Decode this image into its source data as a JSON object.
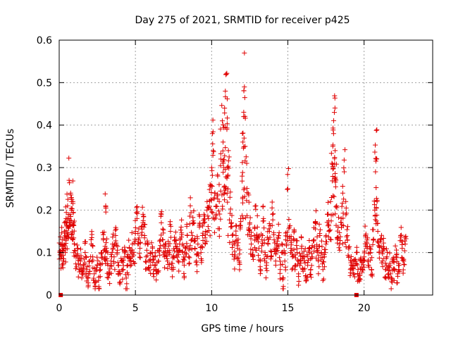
{
  "chart_data": {
    "type": "scatter",
    "title": "Day 275 of 2021, SRMTID for receiver p425",
    "xlabel": "GPS time / hours",
    "ylabel": "SRMTID / TECUs",
    "xlim": [
      0,
      24.5
    ],
    "ylim": [
      0,
      0.6
    ],
    "xticks": [
      0,
      5,
      10,
      15,
      20
    ],
    "yticks": [
      0,
      0.1,
      0.2,
      0.3,
      0.4,
      0.5,
      0.6
    ],
    "xtick_labels": [
      "0",
      "5",
      "10",
      "15",
      "20"
    ],
    "ytick_labels": [
      "0",
      "0.1",
      "0.2",
      "0.3",
      "0.4",
      "0.5",
      "0.6"
    ],
    "grid": true,
    "marker": "+",
    "color": "#e00000",
    "series": [
      {
        "name": "SRMTID",
        "points": [
          [
            0.05,
            0.1
          ],
          [
            0.1,
            0.12
          ],
          [
            0.15,
            0.09
          ],
          [
            0.2,
            0.13
          ],
          [
            0.25,
            0.08
          ],
          [
            0.3,
            0.11
          ],
          [
            0.35,
            0.15
          ],
          [
            0.4,
            0.1
          ],
          [
            0.45,
            0.18
          ],
          [
            0.5,
            0.14
          ],
          [
            0.55,
            0.21
          ],
          [
            0.6,
            0.16
          ],
          [
            0.65,
            0.27
          ],
          [
            0.7,
            0.19
          ],
          [
            0.75,
            0.24
          ],
          [
            0.8,
            0.2
          ],
          [
            0.85,
            0.15
          ],
          [
            0.9,
            0.22
          ],
          [
            0.95,
            0.17
          ],
          [
            1.0,
            0.12
          ],
          [
            1.1,
            0.09
          ],
          [
            1.2,
            0.11
          ],
          [
            1.3,
            0.06
          ],
          [
            1.4,
            0.08
          ],
          [
            1.5,
            0.05
          ],
          [
            1.6,
            0.07
          ],
          [
            1.7,
            0.1
          ],
          [
            1.8,
            0.06
          ],
          [
            1.9,
            0.04
          ],
          [
            2.0,
            0.08
          ],
          [
            2.1,
            0.12
          ],
          [
            2.2,
            0.09
          ],
          [
            2.3,
            0.05
          ],
          [
            2.4,
            0.03
          ],
          [
            2.5,
            0.07
          ],
          [
            2.6,
            0.02
          ],
          [
            2.7,
            0.06
          ],
          [
            2.8,
            0.1
          ],
          [
            2.9,
            0.13
          ],
          [
            3.0,
            0.09
          ],
          [
            3.05,
            0.21
          ],
          [
            3.1,
            0.11
          ],
          [
            3.2,
            0.07
          ],
          [
            3.3,
            0.05
          ],
          [
            3.4,
            0.08
          ],
          [
            3.5,
            0.12
          ],
          [
            3.6,
            0.09
          ],
          [
            3.7,
            0.14
          ],
          [
            3.8,
            0.1
          ],
          [
            3.9,
            0.07
          ],
          [
            4.0,
            0.05
          ],
          [
            4.1,
            0.08
          ],
          [
            4.2,
            0.06
          ],
          [
            4.3,
            0.09
          ],
          [
            4.4,
            0.04
          ],
          [
            4.5,
            0.07
          ],
          [
            4.6,
            0.11
          ],
          [
            4.7,
            0.08
          ],
          [
            4.8,
            0.12
          ],
          [
            4.9,
            0.1
          ],
          [
            5.0,
            0.15
          ],
          [
            5.1,
            0.18
          ],
          [
            5.2,
            0.13
          ],
          [
            5.3,
            0.11
          ],
          [
            5.4,
            0.16
          ],
          [
            5.5,
            0.19
          ],
          [
            5.6,
            0.14
          ],
          [
            5.7,
            0.09
          ],
          [
            5.8,
            0.12
          ],
          [
            5.9,
            0.08
          ],
          [
            6.0,
            0.07
          ],
          [
            6.1,
            0.1
          ],
          [
            6.2,
            0.06
          ],
          [
            6.3,
            0.09
          ],
          [
            6.4,
            0.05
          ],
          [
            6.5,
            0.08
          ],
          [
            6.6,
            0.11
          ],
          [
            6.7,
            0.17
          ],
          [
            6.8,
            0.13
          ],
          [
            6.9,
            0.09
          ],
          [
            7.0,
            0.12
          ],
          [
            7.1,
            0.08
          ],
          [
            7.2,
            0.1
          ],
          [
            7.3,
            0.15
          ],
          [
            7.4,
            0.06
          ],
          [
            7.5,
            0.09
          ],
          [
            7.6,
            0.13
          ],
          [
            7.7,
            0.11
          ],
          [
            7.8,
            0.08
          ],
          [
            7.9,
            0.12
          ],
          [
            8.0,
            0.16
          ],
          [
            8.1,
            0.1
          ],
          [
            8.2,
            0.07
          ],
          [
            8.3,
            0.11
          ],
          [
            8.4,
            0.14
          ],
          [
            8.5,
            0.09
          ],
          [
            8.6,
            0.21
          ],
          [
            8.7,
            0.13
          ],
          [
            8.8,
            0.17
          ],
          [
            8.9,
            0.11
          ],
          [
            9.0,
            0.08
          ],
          [
            9.1,
            0.12
          ],
          [
            9.2,
            0.16
          ],
          [
            9.3,
            0.1
          ],
          [
            9.4,
            0.14
          ],
          [
            9.5,
            0.19
          ],
          [
            9.6,
            0.15
          ],
          [
            9.7,
            0.22
          ],
          [
            9.8,
            0.18
          ],
          [
            9.9,
            0.26
          ],
          [
            10.0,
            0.3
          ],
          [
            10.05,
            0.38
          ],
          [
            10.1,
            0.34
          ],
          [
            10.2,
            0.24
          ],
          [
            10.3,
            0.19
          ],
          [
            10.4,
            0.28
          ],
          [
            10.5,
            0.22
          ],
          [
            10.6,
            0.32
          ],
          [
            10.7,
            0.41
          ],
          [
            10.75,
            0.36
          ],
          [
            10.8,
            0.3
          ],
          [
            10.85,
            0.44
          ],
          [
            10.9,
            0.48
          ],
          [
            10.95,
            0.52
          ],
          [
            11.0,
            0.39
          ],
          [
            11.05,
            0.28
          ],
          [
            11.1,
            0.34
          ],
          [
            11.2,
            0.23
          ],
          [
            11.3,
            0.17
          ],
          [
            11.4,
            0.12
          ],
          [
            11.5,
            0.09
          ],
          [
            11.6,
            0.14
          ],
          [
            11.7,
            0.11
          ],
          [
            11.8,
            0.08
          ],
          [
            11.9,
            0.18
          ],
          [
            12.0,
            0.28
          ],
          [
            12.05,
            0.36
          ],
          [
            12.1,
            0.42
          ],
          [
            12.15,
            0.49
          ],
          [
            12.2,
            0.35
          ],
          [
            12.3,
            0.31
          ],
          [
            12.4,
            0.24
          ],
          [
            12.5,
            0.17
          ],
          [
            12.6,
            0.12
          ],
          [
            12.7,
            0.09
          ],
          [
            12.8,
            0.14
          ],
          [
            12.9,
            0.21
          ],
          [
            13.0,
            0.16
          ],
          [
            13.1,
            0.11
          ],
          [
            13.2,
            0.08
          ],
          [
            13.3,
            0.13
          ],
          [
            13.4,
            0.18
          ],
          [
            13.5,
            0.1
          ],
          [
            13.6,
            0.07
          ],
          [
            13.7,
            0.12
          ],
          [
            13.8,
            0.15
          ],
          [
            13.9,
            0.09
          ],
          [
            14.0,
            0.19
          ],
          [
            14.1,
            0.13
          ],
          [
            14.2,
            0.08
          ],
          [
            14.3,
            0.11
          ],
          [
            14.4,
            0.14
          ],
          [
            14.5,
            0.06
          ],
          [
            14.6,
            0.1
          ],
          [
            14.7,
            0.04
          ],
          [
            14.8,
            0.08
          ],
          [
            14.9,
            0.12
          ],
          [
            15.0,
            0.25
          ],
          [
            15.1,
            0.16
          ],
          [
            15.2,
            0.11
          ],
          [
            15.3,
            0.09
          ],
          [
            15.4,
            0.13
          ],
          [
            15.5,
            0.07
          ],
          [
            15.6,
            0.1
          ],
          [
            15.7,
            0.05
          ],
          [
            15.8,
            0.08
          ],
          [
            15.9,
            0.11
          ],
          [
            16.0,
            0.06
          ],
          [
            16.1,
            0.09
          ],
          [
            16.2,
            0.04
          ],
          [
            16.3,
            0.07
          ],
          [
            16.4,
            0.1
          ],
          [
            16.5,
            0.06
          ],
          [
            16.6,
            0.09
          ],
          [
            16.7,
            0.13
          ],
          [
            16.8,
            0.17
          ],
          [
            16.9,
            0.11
          ],
          [
            17.0,
            0.08
          ],
          [
            17.1,
            0.14
          ],
          [
            17.2,
            0.1
          ],
          [
            17.3,
            0.06
          ],
          [
            17.4,
            0.09
          ],
          [
            17.5,
            0.12
          ],
          [
            17.6,
            0.19
          ],
          [
            17.7,
            0.15
          ],
          [
            17.8,
            0.22
          ],
          [
            17.9,
            0.31
          ],
          [
            17.95,
            0.35
          ],
          [
            18.0,
            0.38
          ],
          [
            18.05,
            0.43
          ],
          [
            18.1,
            0.34
          ],
          [
            18.15,
            0.27
          ],
          [
            18.2,
            0.21
          ],
          [
            18.3,
            0.16
          ],
          [
            18.4,
            0.12
          ],
          [
            18.5,
            0.18
          ],
          [
            18.6,
            0.24
          ],
          [
            18.7,
            0.29
          ],
          [
            18.8,
            0.22
          ],
          [
            18.9,
            0.14
          ],
          [
            19.0,
            0.09
          ],
          [
            19.1,
            0.06
          ],
          [
            19.2,
            0.08
          ],
          [
            19.3,
            0.05
          ],
          [
            19.4,
            0.07
          ],
          [
            19.5,
            0.1
          ],
          [
            19.6,
            0.06
          ],
          [
            19.7,
            0.05
          ],
          [
            19.8,
            0.08
          ],
          [
            19.9,
            0.06
          ],
          [
            20.0,
            0.09
          ],
          [
            20.1,
            0.14
          ],
          [
            20.2,
            0.11
          ],
          [
            20.3,
            0.07
          ],
          [
            20.4,
            0.1
          ],
          [
            20.5,
            0.06
          ],
          [
            20.6,
            0.13
          ],
          [
            20.7,
            0.2
          ],
          [
            20.75,
            0.29
          ],
          [
            20.8,
            0.32
          ],
          [
            20.85,
            0.22
          ],
          [
            20.9,
            0.15
          ],
          [
            21.0,
            0.1
          ],
          [
            21.1,
            0.13
          ],
          [
            21.2,
            0.08
          ],
          [
            21.3,
            0.11
          ],
          [
            21.4,
            0.06
          ],
          [
            21.5,
            0.09
          ],
          [
            21.6,
            0.05
          ],
          [
            21.7,
            0.07
          ],
          [
            21.8,
            0.04
          ],
          [
            21.9,
            0.08
          ],
          [
            22.0,
            0.06
          ],
          [
            22.1,
            0.09
          ],
          [
            22.2,
            0.05
          ],
          [
            22.3,
            0.07
          ],
          [
            22.4,
            0.14
          ],
          [
            22.5,
            0.11
          ],
          [
            22.6,
            0.08
          ],
          [
            22.7,
            0.12
          ]
        ]
      }
    ],
    "extra_points_note": "cloud",
    "data_gap_markers_x": [
      0.1,
      19.5
    ]
  }
}
